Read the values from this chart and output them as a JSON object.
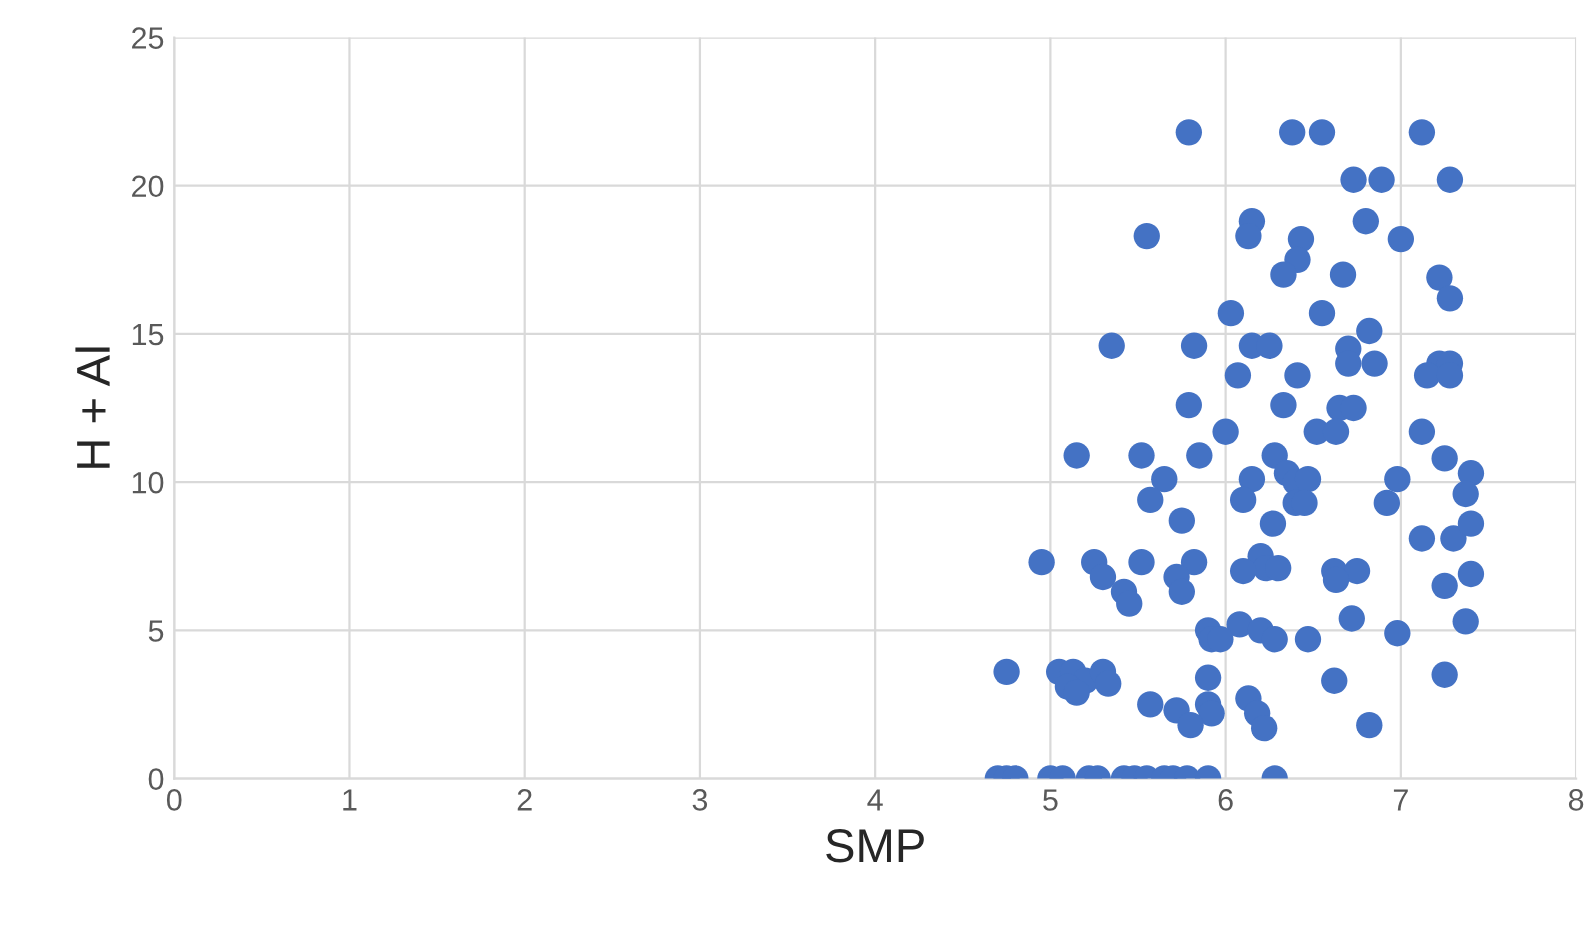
{
  "chart_data": {
    "type": "scatter",
    "xlabel": "SMP",
    "ylabel": "H + Al",
    "xlim": [
      0,
      8
    ],
    "xticks": [
      0,
      1,
      2,
      3,
      4,
      5,
      6,
      7,
      8
    ],
    "ylim": [
      0,
      25
    ],
    "yticks": [
      0,
      5,
      10,
      15,
      20,
      25
    ],
    "grid": true,
    "marker": "circle",
    "series": [
      {
        "color": "#4472c4",
        "x": [
          5.79,
          6.38,
          6.55,
          7.12,
          6.73,
          6.89,
          7.28,
          5.55,
          6.15,
          6.13,
          6.43,
          6.8,
          7.0,
          6.41,
          6.33,
          6.67,
          7.22,
          7.28,
          6.03,
          6.55,
          5.35,
          5.82,
          6.15,
          6.25,
          6.7,
          6.82,
          6.85,
          6.7,
          7.22,
          7.28,
          7.15,
          7.28,
          6.07,
          6.41,
          5.79,
          6.33,
          6.65,
          6.73,
          6.0,
          6.52,
          6.63,
          7.12,
          5.15,
          5.52,
          5.85,
          6.28,
          7.25,
          5.65,
          6.15,
          6.35,
          6.4,
          6.47,
          6.98,
          7.4,
          5.57,
          6.1,
          6.4,
          6.45,
          6.92,
          7.37,
          5.75,
          6.27,
          7.12,
          7.3,
          7.4,
          4.95,
          5.25,
          5.52,
          5.82,
          6.2,
          6.23,
          6.3,
          6.1,
          6.62,
          6.75,
          7.4,
          5.3,
          5.72,
          6.63,
          5.42,
          5.75,
          5.45,
          7.25,
          5.9,
          6.08,
          6.2,
          6.72,
          7.37,
          5.92,
          5.97,
          6.28,
          6.47,
          6.98,
          4.75,
          5.05,
          5.13,
          5.2,
          5.3,
          5.33,
          5.1,
          5.15,
          5.9,
          6.62,
          7.25,
          5.57,
          5.72,
          5.9,
          5.92,
          6.13,
          6.18,
          5.8,
          6.22,
          6.82,
          4.7,
          4.75,
          4.8,
          5.0,
          5.07,
          5.22,
          5.27,
          5.42,
          5.48,
          5.55,
          5.65,
          5.7,
          5.78,
          5.9,
          6.28
        ],
        "values": [
          21.8,
          21.8,
          21.8,
          21.8,
          20.2,
          20.2,
          20.2,
          18.3,
          18.8,
          18.3,
          18.2,
          18.8,
          18.2,
          17.5,
          17.0,
          17.0,
          16.9,
          16.2,
          15.7,
          15.7,
          14.6,
          14.6,
          14.6,
          14.6,
          14.5,
          15.1,
          14.0,
          14.0,
          14.0,
          14.0,
          13.6,
          13.6,
          13.6,
          13.6,
          12.6,
          12.6,
          12.5,
          12.5,
          11.7,
          11.7,
          11.7,
          11.7,
          10.9,
          10.9,
          10.9,
          10.9,
          10.8,
          10.1,
          10.1,
          10.3,
          10.0,
          10.1,
          10.1,
          10.3,
          9.4,
          9.4,
          9.3,
          9.3,
          9.3,
          9.6,
          8.7,
          8.6,
          8.1,
          8.1,
          8.6,
          7.3,
          7.3,
          7.3,
          7.3,
          7.5,
          7.1,
          7.1,
          7.0,
          7.0,
          7.0,
          6.9,
          6.8,
          6.8,
          6.7,
          6.3,
          6.3,
          5.9,
          6.5,
          5.0,
          5.2,
          5.0,
          5.4,
          5.3,
          4.7,
          4.7,
          4.7,
          4.7,
          4.9,
          3.6,
          3.6,
          3.6,
          3.3,
          3.6,
          3.2,
          3.1,
          2.9,
          3.4,
          3.3,
          3.5,
          2.5,
          2.3,
          2.5,
          2.2,
          2.7,
          2.2,
          1.8,
          1.7,
          1.8,
          0,
          0,
          0,
          0,
          0,
          0,
          0,
          0,
          0,
          0,
          0,
          0,
          0,
          0,
          0
        ]
      }
    ]
  }
}
